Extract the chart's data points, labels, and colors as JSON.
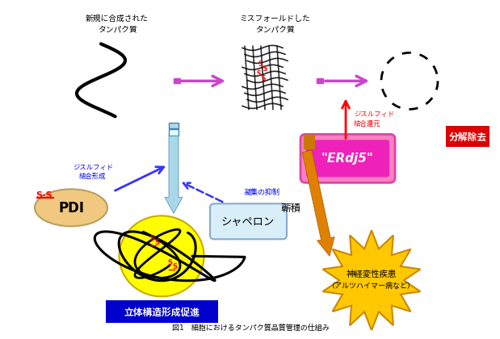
{
  "title": "図1　細胞におけるタンパク質品質管理の仕組み",
  "bg_color": "#ffffff",
  "label_newly_synthesized": "新規に合成された\nタンパク質",
  "label_misfolded": "ミスフォールドした\nタンパク質",
  "label_degradation": "分解除去",
  "label_pdi": "PDI",
  "label_ss_pdi": "S-S",
  "label_chaperone": "シャペロン",
  "label_erdj5": "\"ERdj5\"",
  "label_3d_structure": "立体構造形成促進",
  "label_neurodegeneration_1": "神経変性疾患",
  "label_neurodegeneration_2": "（アルツハイマー病など）",
  "label_disulfide_formation_1": "ジスルフィド",
  "label_disulfide_formation_2": "結合形成",
  "label_disulfide_reduction_1": "ジスルフィド",
  "label_disulfide_reduction_2": "結合還元",
  "label_aggregation_suppression": "凝集の抑制",
  "label_accumulation": "蕲積",
  "arrow_pink_color": "#cc44cc",
  "arrow_red_color": "#ff0000",
  "arrow_blue_color": "#3333ff",
  "arrow_cyan_color": "#a8d8e8",
  "arrow_orange_color": "#e08000",
  "box_red_color": "#dd0000",
  "box_blue_color": "#0000cc",
  "pdi_fill": "#f0c880",
  "star_fill": "#ffc800",
  "yellow_ellipse_fill": "#ffff00",
  "chaperone_fill": "#d8eef8",
  "chaperone_border": "#88aacc"
}
